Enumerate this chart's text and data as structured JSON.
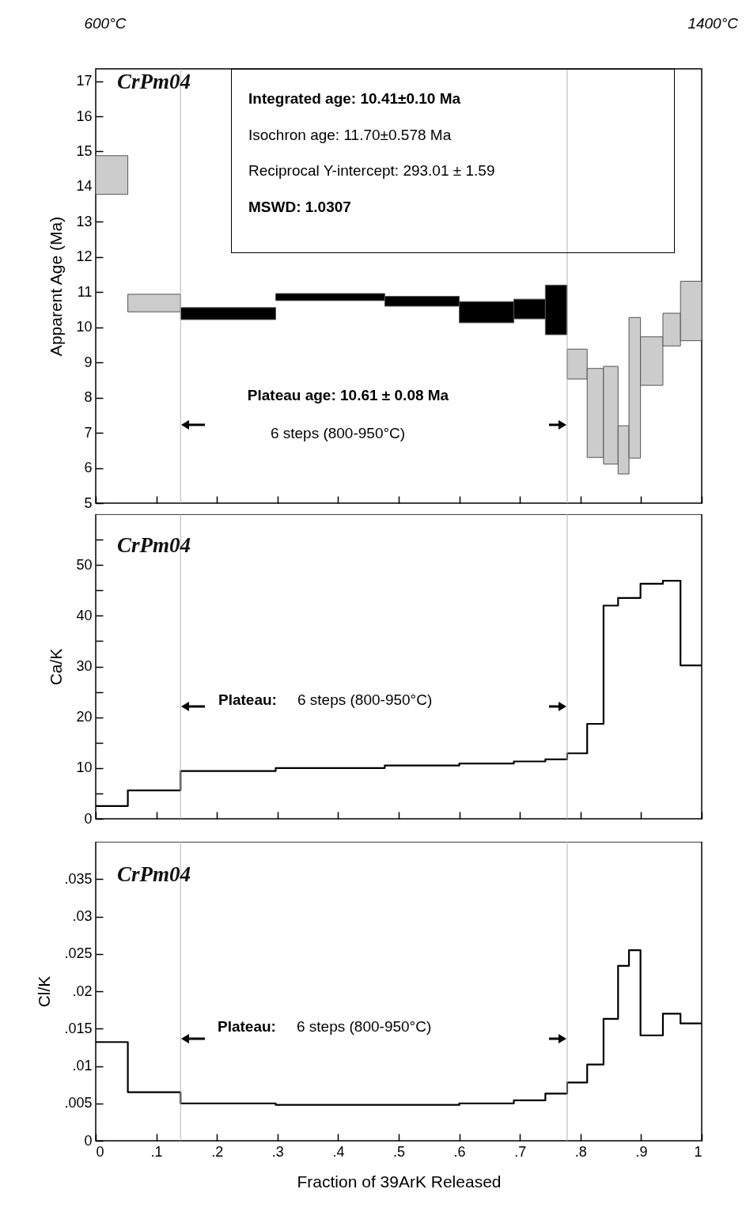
{
  "chart_data": [
    {
      "type": "histogram",
      "title": "CrPm04",
      "ylabel": "Apparent Age (Ma)",
      "bins": [
        0,
        0.053,
        0.14,
        0.297,
        0.477,
        0.6,
        0.69,
        0.742,
        0.778,
        0.811,
        0.838,
        0.862,
        0.88,
        0.899,
        0.936,
        0.965,
        1
      ],
      "base": [
        13.78,
        10.44,
        10.22,
        10.76,
        10.6,
        10.13,
        10.24,
        9.79,
        8.53,
        6.3,
        6.11,
        5.83,
        6.28,
        8.35,
        9.47,
        9.62
      ],
      "values": [
        1.1,
        0.5,
        0.34,
        0.2,
        0.28,
        0.6,
        0.56,
        1.41,
        0.85,
        2.53,
        2.78,
        1.37,
        4.0,
        1.38,
        0.93,
        1.69
      ],
      "colors": [
        "#cccccc",
        "#cccccc",
        "#000000",
        "#000000",
        "#000000",
        "#000000",
        "#000000",
        "#000000",
        "#cccccc",
        "#cccccc",
        "#cccccc",
        "#cccccc",
        "#cccccc",
        "#cccccc",
        "#cccccc",
        "#cccccc"
      ],
      "xlim": [
        0,
        1
      ],
      "ylim": [
        5,
        17.35
      ],
      "xticks": [
        0,
        0.1,
        0.2,
        0.3,
        0.4,
        0.5,
        0.6,
        0.7,
        0.8,
        0.9,
        1
      ],
      "yticks": [
        5,
        6,
        7,
        8,
        9,
        10,
        11,
        12,
        13,
        14,
        15,
        16,
        17
      ],
      "tick_labels": "y",
      "ref_lines": [
        {
          "axis": "x",
          "value": 0.14
        },
        {
          "axis": "x",
          "value": 0.778
        }
      ],
      "annotations": [
        "600°C",
        "1400°C",
        "Integrated age: 10.41±0.10 Ma",
        "Isochron age:      11.70±0.578 Ma",
        "Reciprocal Y-intercept: 293.01 ± 1.59",
        "MSWD: 1.0307",
        "Plateau age: 10.61 ± 0.08 Ma",
        "6 steps (800-950°C)"
      ]
    },
    {
      "type": "step",
      "title": "CrPm04",
      "ylabel": "Ca/K",
      "color": "#000000",
      "x": [
        0,
        0.053,
        0.14,
        0.297,
        0.477,
        0.6,
        0.69,
        0.742,
        0.778,
        0.811,
        0.838,
        0.862,
        0.88,
        0.899,
        0.936,
        0.965,
        1
      ],
      "values": [
        2.5,
        5.6,
        9.4,
        10.0,
        10.5,
        10.9,
        11.3,
        11.7,
        12.9,
        18.7,
        42.0,
        43.5,
        43.5,
        46.3,
        46.9,
        30.2,
        30.2
      ],
      "xlim": [
        0,
        1
      ],
      "ylim": [
        0,
        60
      ],
      "xticks": [
        0,
        0.1,
        0.2,
        0.3,
        0.4,
        0.5,
        0.6,
        0.7,
        0.8,
        0.9,
        1
      ],
      "yticks": [
        0,
        {
          "value": 5,
          "label": null
        },
        10,
        {
          "value": 15,
          "label": null
        },
        20,
        {
          "value": 25,
          "label": null
        },
        30,
        {
          "value": 35,
          "label": null
        },
        40,
        {
          "value": 45,
          "label": null
        },
        50,
        {
          "value": 55,
          "label": null
        }
      ],
      "tick_labels": "y",
      "ref_lines": [
        {
          "axis": "x",
          "value": 0.14
        },
        {
          "axis": "x",
          "value": 0.778
        }
      ],
      "annotations": [
        "Plateau:",
        "6 steps (800-950°C)"
      ]
    },
    {
      "type": "step",
      "title": "CrPm04",
      "ylabel": "Cl/K",
      "xlabel": "Fraction of 39ArK Released",
      "color": "#000000",
      "x": [
        0,
        0.053,
        0.14,
        0.297,
        0.477,
        0.6,
        0.69,
        0.742,
        0.778,
        0.811,
        0.838,
        0.862,
        0.88,
        0.899,
        0.936,
        0.965,
        1
      ],
      "values": [
        0.0132,
        0.0065,
        0.005,
        0.0048,
        0.0048,
        0.005,
        0.0054,
        0.0063,
        0.0078,
        0.0102,
        0.0163,
        0.0234,
        0.0255,
        0.0141,
        0.017,
        0.0157,
        0.0157
      ],
      "xlim": [
        0,
        1
      ],
      "ylim": [
        0,
        0.04
      ],
      "xticks": [
        0,
        {
          "value": 0.1,
          "label": ".1"
        },
        {
          "value": 0.2,
          "label": ".2"
        },
        {
          "value": 0.3,
          "label": ".3"
        },
        {
          "value": 0.4,
          "label": ".4"
        },
        {
          "value": 0.5,
          "label": ".5"
        },
        {
          "value": 0.6,
          "label": ".6"
        },
        {
          "value": 0.7,
          "label": ".7"
        },
        {
          "value": 0.8,
          "label": ".8"
        },
        {
          "value": 0.9,
          "label": ".9"
        },
        1
      ],
      "yticks": [
        0,
        {
          "value": 0.005,
          "label": ".005"
        },
        {
          "value": 0.01,
          "label": ".01"
        },
        {
          "value": 0.015,
          "label": ".015"
        },
        {
          "value": 0.02,
          "label": ".02"
        },
        {
          "value": 0.025,
          "label": ".025"
        },
        {
          "value": 0.03,
          "label": ".03"
        },
        {
          "value": 0.035,
          "label": ".035"
        }
      ],
      "ref_lines": [
        {
          "axis": "x",
          "value": 0.14
        },
        {
          "axis": "x",
          "value": 0.778
        }
      ],
      "annotations": [
        "Plateau:",
        "6 steps (800-950°C)"
      ]
    }
  ]
}
